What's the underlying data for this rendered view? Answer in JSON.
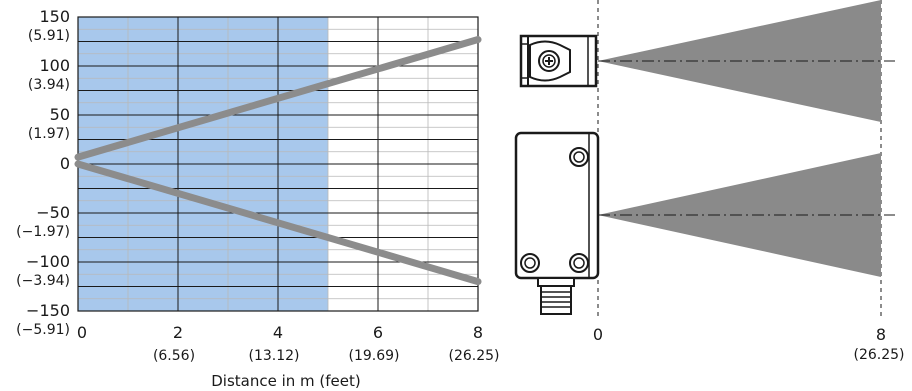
{
  "chart_data": {
    "type": "line",
    "title": "",
    "xlabel": "Distance in m (feet)",
    "ylabel": "",
    "xlim": [
      0,
      8
    ],
    "ylim": [
      -150,
      150
    ],
    "grid": true,
    "x_ticks": [
      {
        "value": 0,
        "label": "0",
        "sub": ""
      },
      {
        "value": 2,
        "label": "2",
        "sub": "(6.56)"
      },
      {
        "value": 4,
        "label": "4",
        "sub": "(13.12)"
      },
      {
        "value": 6,
        "label": "6",
        "sub": "(19.69)"
      },
      {
        "value": 8,
        "label": "8",
        "sub": "(26.25)"
      }
    ],
    "y_ticks": [
      {
        "value": 150,
        "label": "150",
        "sub": "(5.91)"
      },
      {
        "value": 100,
        "label": "100",
        "sub": "(3.94)"
      },
      {
        "value": 50,
        "label": "50",
        "sub": "(1.97)"
      },
      {
        "value": 0,
        "label": "0",
        "sub": ""
      },
      {
        "value": -50,
        "label": "−50",
        "sub": "(−1.97)"
      },
      {
        "value": -100,
        "label": "−100",
        "sub": "(−3.94)"
      },
      {
        "value": -150,
        "label": "−150",
        "sub": "(−5.91)"
      }
    ],
    "shaded_range": {
      "x_from": 0,
      "x_to": 5,
      "color": "#a8c8ec"
    },
    "series": [
      {
        "color": "#8c8c8c",
        "points": [
          [
            0,
            7
          ],
          [
            8,
            127
          ]
        ]
      },
      {
        "color": "#8c8c8c",
        "points": [
          [
            0,
            0
          ],
          [
            8,
            -120
          ]
        ]
      }
    ]
  },
  "diagram": {
    "distance_ticks": [
      {
        "label": "0",
        "sub": ""
      },
      {
        "label": "8",
        "sub": "(26.25)"
      }
    ],
    "beam_color": "#8a8a8a"
  }
}
